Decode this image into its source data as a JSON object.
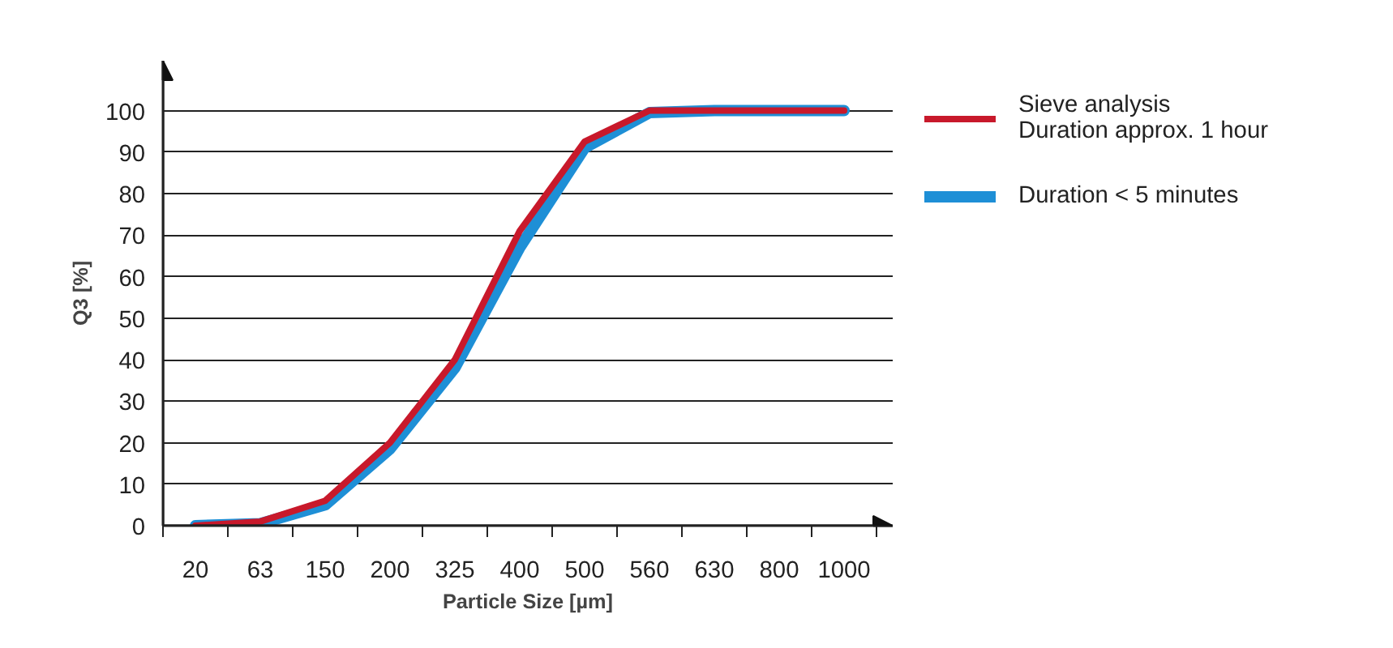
{
  "chart_data": {
    "type": "line",
    "xlabel": "Particle Size [µm]",
    "ylabel": "Q3 [%]",
    "categories": [
      "20",
      "63",
      "150",
      "200",
      "325",
      "400",
      "500",
      "560",
      "630",
      "800",
      "1000"
    ],
    "series": [
      {
        "name": "Duration < 5 minutes",
        "color": "#1e8fd6",
        "values": [
          0,
          0.5,
          5,
          18.5,
          38,
          67,
          91,
          99.5,
          100,
          100,
          100
        ]
      },
      {
        "name": "Sieve analysis\nDuration approx. 1 hour",
        "color": "#c8192b",
        "values": [
          0,
          1,
          6,
          20,
          40,
          71,
          92.5,
          100,
          100,
          100,
          100
        ]
      }
    ],
    "ylim": [
      0,
      112
    ],
    "yticks": [
      0,
      10,
      20,
      30,
      40,
      50,
      60,
      70,
      80,
      90,
      100
    ],
    "grid": "y",
    "legend": "right",
    "line_style": "solid",
    "marker": "none"
  }
}
